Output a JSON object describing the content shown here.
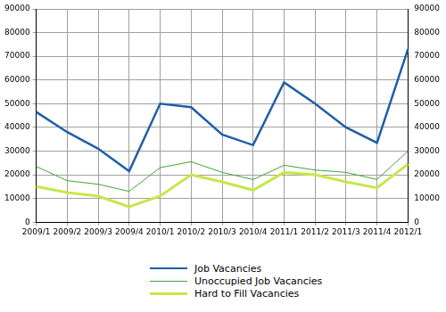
{
  "chart_data": {
    "type": "line",
    "categories": [
      "2009/1",
      "2009/2",
      "2009/3",
      "2009/4",
      "2010/1",
      "2010/2",
      "2010/3",
      "2010/4",
      "2011/1",
      "2011/2",
      "2011/3",
      "2011/4",
      "2012/1"
    ],
    "series": [
      {
        "name": "Job Vacancies",
        "color": "#1f5fa8",
        "values": [
          46500,
          38000,
          31000,
          21500,
          50000,
          48500,
          37000,
          32500,
          59000,
          50000,
          40000,
          33500,
          73000
        ]
      },
      {
        "name": "Unoccupied Job Vacancies",
        "color": "#3fa535",
        "values": [
          23500,
          17500,
          16000,
          13000,
          23000,
          25500,
          21000,
          18000,
          24000,
          22000,
          21000,
          18000,
          30000
        ]
      },
      {
        "name": "Hard to Fill Vacancies",
        "color": "#c8e64a",
        "values": [
          15000,
          12500,
          11000,
          6500,
          11000,
          20000,
          17000,
          13500,
          21000,
          20000,
          17000,
          14500,
          24500
        ]
      }
    ],
    "ylim": [
      0,
      90000
    ],
    "yticks": [
      0,
      10000,
      20000,
      30000,
      40000,
      50000,
      60000,
      70000,
      80000,
      90000
    ],
    "y2lim": [
      0,
      90000
    ],
    "y2ticks": [
      0,
      10000,
      20000,
      30000,
      40000,
      50000,
      60000,
      70000,
      80000,
      90000
    ],
    "grid": true,
    "legend": "bottom"
  }
}
